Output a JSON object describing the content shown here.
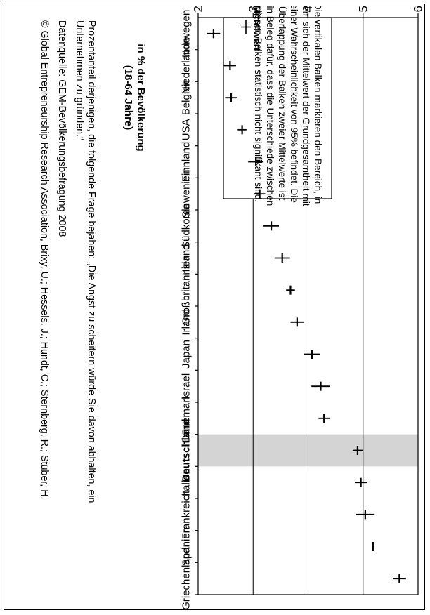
{
  "chart_data": {
    "type": "scatter",
    "ylabel_line1": "in % der Bevölkerung",
    "ylabel_line2": "(18-64 Jahre)",
    "ylim": [
      20,
      60
    ],
    "yticks": [
      20,
      30,
      40,
      50,
      60
    ],
    "grid": true,
    "highlight_category": "Deutschland",
    "highlight_color": "#d4d4d4",
    "categories": [
      "Norwegen",
      "Niederlande",
      "Belgien",
      "USA",
      "Finnland",
      "Slowenien",
      "Südkorea",
      "Island",
      "Großbritannien",
      "Irland",
      "Japan",
      "Israel",
      "Dänemark",
      "Deutschland",
      "Italien",
      "Frankreich",
      "Spanien",
      "Griechenland"
    ],
    "mean": [
      22.8,
      25.8,
      26.0,
      28.0,
      30.5,
      31.2,
      33.3,
      35.3,
      36.8,
      38.0,
      40.7,
      42.3,
      42.9,
      49.0,
      49.6,
      50.4,
      51.8,
      56.6
    ],
    "lower": [
      21.6,
      24.7,
      24.9,
      27.2,
      29.1,
      30.2,
      31.9,
      33.9,
      36.0,
      36.8,
      39.2,
      40.6,
      41.9,
      48.1,
      48.5,
      48.7,
      51.6,
      55.4
    ],
    "upper": [
      24.0,
      26.9,
      27.1,
      28.8,
      31.9,
      32.2,
      34.7,
      36.7,
      37.6,
      39.2,
      42.2,
      44.0,
      43.9,
      49.9,
      50.7,
      52.1,
      52.0,
      57.8
    ],
    "legend": {
      "title": "Mittelwert",
      "text_lines": [
        "Die vertikalen Balken markieren den Bereich, in",
        "dem sich der Mittelwert der Grundgesamtheit mit",
        "einer Wahrscheinlichkeit von 95% befindet. Die",
        "Überlappung der Balken zweier Mittelwerte ist",
        "ein Beleg dafür, dass die Unterschiede zwischen",
        "diesen Balken statistisch nicht signifikant sind."
      ]
    }
  },
  "notes": {
    "definition_line1": "Prozentanteil derjenigen, die folgende Frage bejahen: „Die Angst zu scheitern würde Sie davon abhalten, ein",
    "definition_line2": "Unternehmen zu gründen.“",
    "source": "Datenquelle: GEM-Bevölkerungsbefragung 2008",
    "copyright": "© Global Entrepreneurship Research Association, Brixy, U.; Hessels, J.; Hundt, C.; Sternberg, R.; Stüber, H."
  }
}
